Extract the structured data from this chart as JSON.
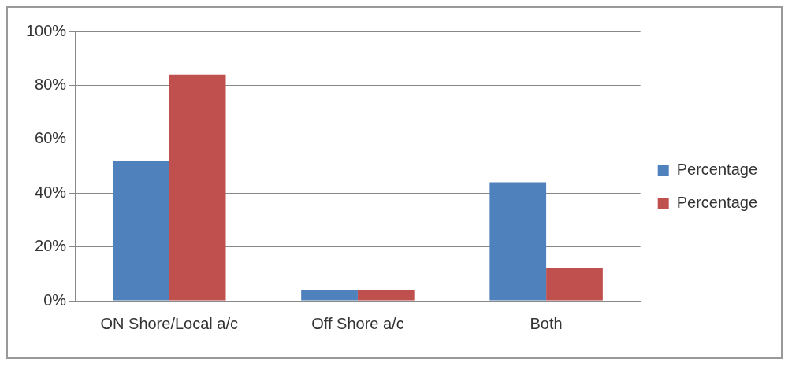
{
  "chart_data": {
    "type": "bar",
    "categories": [
      "ON Shore/Local a/c",
      "Off Shore a/c",
      "Both"
    ],
    "series": [
      {
        "name": "Percentage",
        "color": "#4f81bd",
        "values": [
          52,
          4,
          44
        ]
      },
      {
        "name": "Percentage",
        "color": "#c0504d",
        "values": [
          84,
          4,
          12
        ]
      }
    ],
    "ylim": [
      0,
      100
    ],
    "yticks": [
      {
        "value": 0,
        "label": "0%"
      },
      {
        "value": 20,
        "label": "20%"
      },
      {
        "value": 40,
        "label": "40%"
      },
      {
        "value": 60,
        "label": "60%"
      },
      {
        "value": 80,
        "label": "80%"
      },
      {
        "value": 100,
        "label": "100%"
      }
    ],
    "grid": "y",
    "legend": "right"
  }
}
